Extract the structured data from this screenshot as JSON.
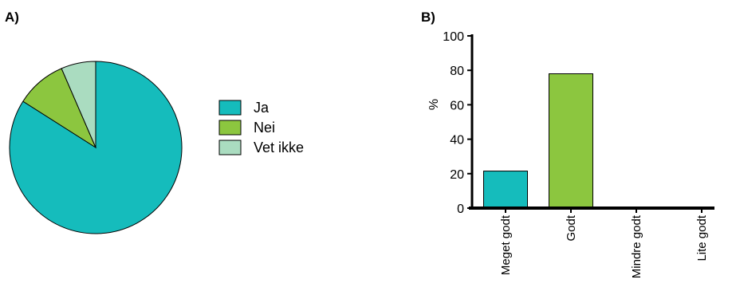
{
  "panels": {
    "a_label": "A)",
    "b_label": "B)"
  },
  "chart_data": [
    {
      "type": "pie",
      "labels": [
        "Ja",
        "Nei",
        "Vet ikke"
      ],
      "values": [
        84,
        9.5,
        6.5
      ],
      "colors": [
        "#15bcbc",
        "#8cc63f",
        "#aadcc0"
      ],
      "legend": "right"
    },
    {
      "type": "bar",
      "categories": [
        "Meget godt",
        "Godt",
        "Mindre godt",
        "Lite godt"
      ],
      "values": [
        21.5,
        78,
        0,
        0
      ],
      "colors": [
        "#15bcbc",
        "#8cc63f",
        "#8cc63f",
        "#8cc63f"
      ],
      "ylabel": "%",
      "ylim": [
        0,
        100
      ],
      "yticks": [
        "0",
        "20",
        "40",
        "60",
        "80",
        "100"
      ]
    }
  ]
}
